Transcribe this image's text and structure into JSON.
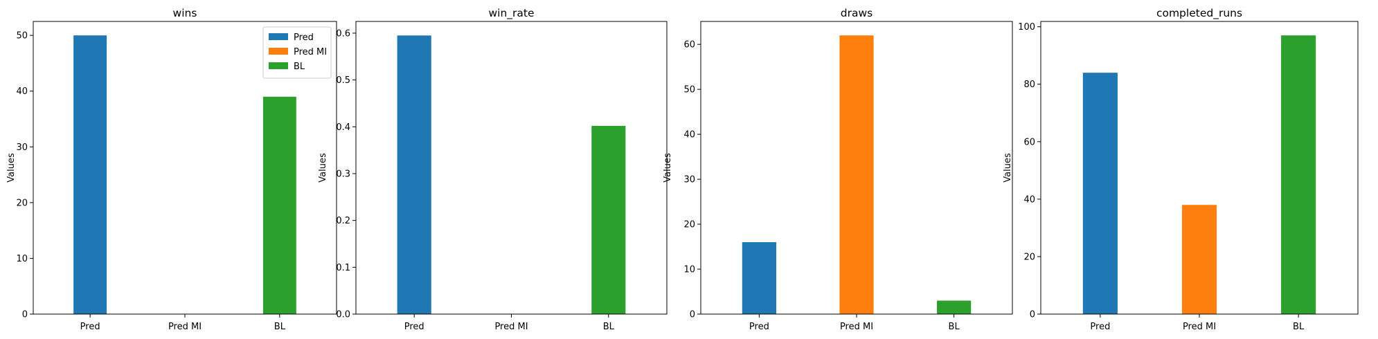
{
  "colors": {
    "pred": "#1f77b4",
    "pred_mi": "#ff7f0e",
    "bl": "#2ca02c"
  },
  "legend": {
    "location": "top-right",
    "entries": [
      "Pred",
      "Pred MI",
      "BL"
    ]
  },
  "chart_data": [
    {
      "type": "bar",
      "title": "wins",
      "xlabel": "",
      "ylabel": "Values",
      "categories": [
        "Pred",
        "Pred MI",
        "BL"
      ],
      "values": [
        50,
        0,
        39
      ],
      "ylim": [
        0,
        52.5
      ],
      "yticks": [
        0,
        10,
        20,
        30,
        40,
        50
      ],
      "ytick_labels": [
        "0",
        "10",
        "20",
        "30",
        "40",
        "50"
      ],
      "grid": false
    },
    {
      "type": "bar",
      "title": "win_rate",
      "xlabel": "",
      "ylabel": "Values",
      "categories": [
        "Pred",
        "Pred MI",
        "BL"
      ],
      "values": [
        0.595,
        0,
        0.402
      ],
      "ylim": [
        0,
        0.625
      ],
      "yticks": [
        0,
        0.1,
        0.2,
        0.3,
        0.4,
        0.5,
        0.6
      ],
      "ytick_labels": [
        "0.0",
        "0.1",
        "0.2",
        "0.3",
        "0.4",
        "0.5",
        "0.6"
      ],
      "grid": false
    },
    {
      "type": "bar",
      "title": "draws",
      "xlabel": "",
      "ylabel": "Values",
      "categories": [
        "Pred",
        "Pred MI",
        "BL"
      ],
      "values": [
        16,
        62,
        3
      ],
      "ylim": [
        0,
        65.1
      ],
      "yticks": [
        0,
        10,
        20,
        30,
        40,
        50,
        60
      ],
      "ytick_labels": [
        "0",
        "10",
        "20",
        "30",
        "40",
        "50",
        "60"
      ],
      "grid": false
    },
    {
      "type": "bar",
      "title": "completed_runs",
      "xlabel": "",
      "ylabel": "Values",
      "categories": [
        "Pred",
        "Pred MI",
        "BL"
      ],
      "values": [
        84,
        38,
        97
      ],
      "ylim": [
        0,
        101.85
      ],
      "yticks": [
        0,
        20,
        40,
        60,
        80,
        100
      ],
      "ytick_labels": [
        "0",
        "20",
        "40",
        "60",
        "80",
        "100"
      ],
      "grid": false
    }
  ]
}
